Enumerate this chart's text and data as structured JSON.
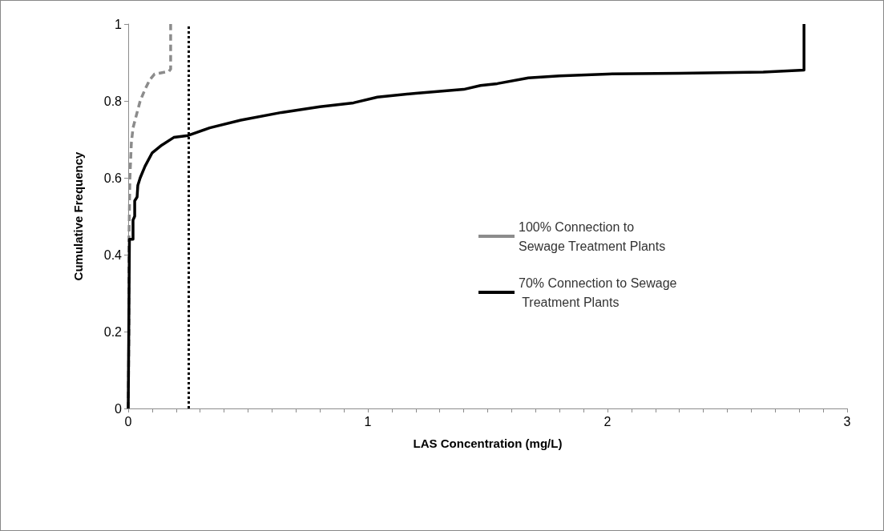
{
  "chart_data": {
    "type": "line",
    "xlabel": "LAS Concentration (mg/L)",
    "ylabel": "Cumulative Frequency",
    "xlim": [
      0,
      3
    ],
    "ylim": [
      0,
      1
    ],
    "xticks": [
      0,
      {
        "value": 0.1,
        "label": null
      },
      {
        "value": 0.2,
        "label": null
      },
      {
        "value": 0.3,
        "label": null
      },
      {
        "value": 0.4,
        "label": null
      },
      {
        "value": 0.5,
        "label": null
      },
      {
        "value": 0.6,
        "label": null
      },
      {
        "value": 0.7,
        "label": null
      },
      {
        "value": 0.8,
        "label": null
      },
      {
        "value": 0.9,
        "label": null
      },
      1,
      {
        "value": 1.1,
        "label": null
      },
      {
        "value": 1.2,
        "label": null
      },
      {
        "value": 1.3,
        "label": null
      },
      {
        "value": 1.4,
        "label": null
      },
      {
        "value": 1.5,
        "label": null
      },
      {
        "value": 1.6,
        "label": null
      },
      {
        "value": 1.7,
        "label": null
      },
      {
        "value": 1.8,
        "label": null
      },
      {
        "value": 1.9,
        "label": null
      },
      2,
      {
        "value": 2.1,
        "label": null
      },
      {
        "value": 2.2,
        "label": null
      },
      {
        "value": 2.3,
        "label": null
      },
      {
        "value": 2.4,
        "label": null
      },
      {
        "value": 2.5,
        "label": null
      },
      {
        "value": 2.6,
        "label": null
      },
      {
        "value": 2.7,
        "label": null
      },
      {
        "value": 2.8,
        "label": null
      },
      {
        "value": 2.9,
        "label": null
      },
      3
    ],
    "yticks": [
      0,
      0.2,
      0.4,
      0.6,
      0.8,
      1
    ],
    "grid": false,
    "legend": "right",
    "marker": "none",
    "series": [
      {
        "name": "100% Connection to Sewage Treatment Plants",
        "color": "#8c8c8c",
        "line_style": "dashed",
        "x": [
          0,
          0.003,
          0.003,
          0.007,
          0.013,
          0.02,
          0.037,
          0.05,
          0.07,
          0.09,
          0.11,
          0.137,
          0.17,
          0.177,
          0.177
        ],
        "values": [
          0,
          0.2,
          0.44,
          0.6,
          0.69,
          0.73,
          0.77,
          0.8,
          0.83,
          0.855,
          0.87,
          0.873,
          0.877,
          0.883,
          1
        ]
      },
      {
        "name": "70% Connection to Sewage Treatment Plants",
        "color": "#000000",
        "line_style": "solid",
        "x": [
          0,
          0.005,
          0.02,
          0.02,
          0.027,
          0.027,
          0.037,
          0.04,
          0.05,
          0.07,
          0.1,
          0.14,
          0.19,
          0.25,
          0.34,
          0.47,
          0.64,
          0.8,
          0.94,
          1.04,
          1.2,
          1.4,
          1.47,
          1.54,
          1.67,
          1.8,
          2.0,
          2.3,
          2.65,
          2.82,
          2.82
        ],
        "values": [
          0,
          0.44,
          0.44,
          0.49,
          0.5,
          0.54,
          0.55,
          0.58,
          0.6,
          0.63,
          0.665,
          0.685,
          0.705,
          0.71,
          0.73,
          0.75,
          0.77,
          0.785,
          0.795,
          0.81,
          0.82,
          0.83,
          0.84,
          0.845,
          0.86,
          0.865,
          0.87,
          0.872,
          0.875,
          0.88,
          1
        ]
      }
    ],
    "ref_lines": [
      {
        "axis": "x",
        "value": 0.25,
        "color": "#000000",
        "line_style": "dotted"
      }
    ]
  }
}
